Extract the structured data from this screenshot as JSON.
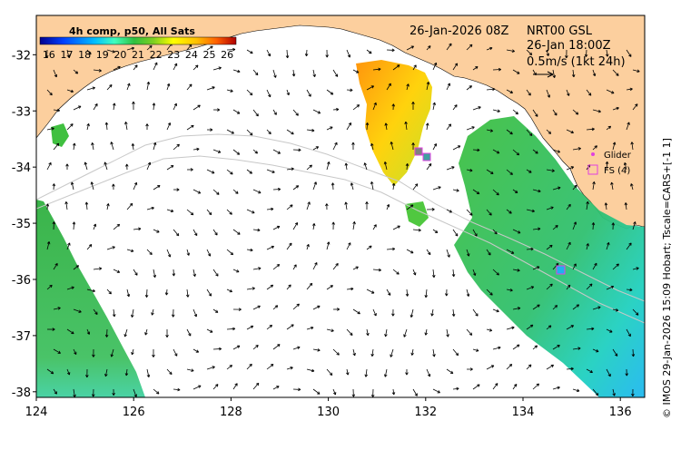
{
  "map": {
    "date_label": "26-Jan-2026 08Z",
    "product_lines": [
      "NRT00 GSL",
      "26-Jan 18:00Z",
      "0.5m/s (1kt 24h)"
    ],
    "lon_ticks": [
      "124",
      "126",
      "128",
      "130",
      "132",
      "134",
      "136"
    ],
    "lat_ticks": [
      "-32",
      "-33",
      "-34",
      "-35",
      "-36",
      "-37",
      "-38"
    ],
    "lon_range": [
      124,
      136.5
    ],
    "lat_range": [
      -38.1,
      -31.3
    ],
    "credit": "© IMOS 29-Jan-2026 15:09 Hobart; Tscale=CARS+[-1 1]",
    "colors": {
      "land": "#fccf9e",
      "ocean": "#ffffff",
      "contour": "#c8c8c8",
      "arrow": "#000000"
    }
  },
  "colorbar": {
    "title": "4h comp, p50, All Sats",
    "ticks": [
      "16",
      "17",
      "18",
      "19",
      "20",
      "21",
      "22",
      "23",
      "24",
      "25",
      "26"
    ],
    "range": [
      15.5,
      26.5
    ],
    "colors": [
      "#00008f",
      "#0040ff",
      "#00bfff",
      "#40ffbf",
      "#30c040",
      "#20b020",
      "#a0e020",
      "#ffff00",
      "#ffbf00",
      "#ff6000",
      "#b00000"
    ]
  },
  "legend": {
    "items": [
      {
        "label": "Glider",
        "symbol": "dot",
        "color": "#e040e0"
      },
      {
        "label": "FS (4)",
        "symbol": "square",
        "color": "#e040e0"
      }
    ]
  }
}
